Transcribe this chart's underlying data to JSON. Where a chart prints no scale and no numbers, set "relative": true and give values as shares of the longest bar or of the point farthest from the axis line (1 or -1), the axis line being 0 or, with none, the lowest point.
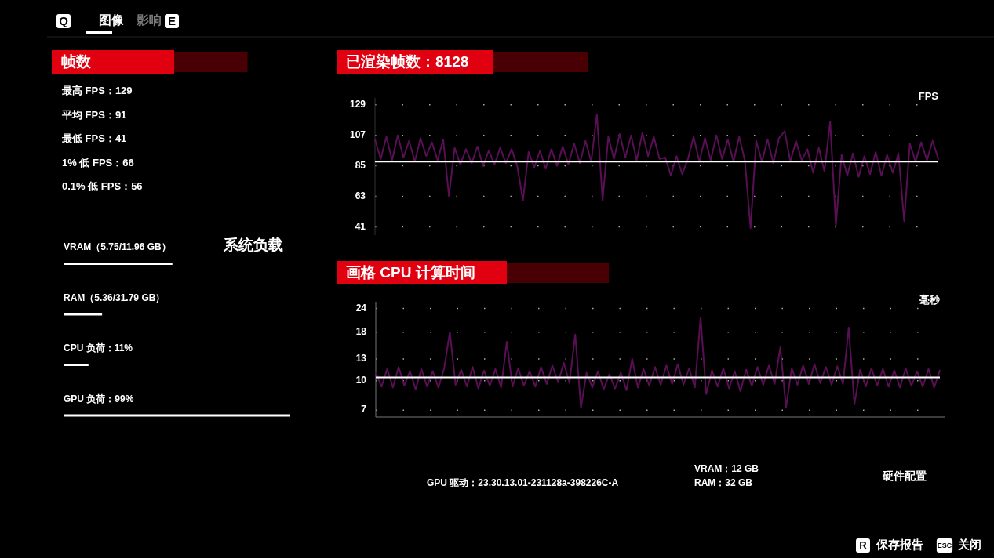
{
  "chart_data": [
    {
      "type": "other",
      "annotations": [
        "Q",
        "图像",
        "影响",
        "E",
        "GPU 驱动：23.30.13.01-231128a-398226C-A",
        "VRAM：12 GB",
        "RAM：32 GB",
        "硬件配置",
        "R",
        "保存报告",
        "ESC",
        "关闭"
      ]
    },
    {
      "type": "other",
      "title": "帧数",
      "annotations": [
        "最高 FPS：129",
        "平均 FPS：91",
        "最低 FPS：41",
        "1% 低 FPS：66",
        "0.1% 低 FPS：56"
      ]
    },
    {
      "type": "bar",
      "orientation": "horizontal",
      "relative": true,
      "title": "系统负载",
      "categories": [
        "VRAM（5.75/11.96 GB）",
        "RAM（5.36/31.79 GB）",
        "CPU 负荷：11%",
        "GPU 负荷：99%"
      ],
      "values": [
        0.48,
        0.17,
        0.11,
        1
      ],
      "color": "#ffffff"
    },
    {
      "type": "line",
      "title": "已渲染帧数：8128",
      "ylabel": "FPS",
      "grid": true,
      "ylim": [
        35,
        134
      ],
      "yticks": [
        129,
        107,
        85,
        63,
        41
      ],
      "ref_lines": [
        {
          "axis": "y",
          "value": 88,
          "color": "#ffffff"
        }
      ],
      "categories": [
        null,
        null,
        null,
        null,
        null,
        null,
        null,
        null,
        null,
        null,
        null,
        null,
        null,
        null,
        null,
        null,
        null,
        null,
        null,
        null,
        null,
        null,
        null,
        null,
        null,
        null,
        null,
        null,
        null,
        null,
        null,
        null,
        null,
        null,
        null,
        null,
        null,
        null,
        null,
        null,
        null,
        null,
        null,
        null,
        null,
        null,
        null,
        null,
        null,
        null,
        null,
        null,
        null,
        null,
        null,
        null,
        null,
        null,
        null,
        null,
        null,
        null,
        null,
        null,
        null,
        null,
        null,
        null,
        null,
        null,
        null,
        null,
        null,
        null,
        null,
        null,
        null,
        null,
        null,
        null,
        null,
        null,
        null,
        null,
        null,
        null,
        null,
        null,
        null,
        null,
        null,
        null,
        null,
        null,
        null,
        null,
        null,
        null,
        null,
        null
      ],
      "series": [
        {
          "color": "#5a0f55",
          "values": [
            104,
            90,
            106,
            89,
            107,
            91,
            103,
            88,
            105,
            92,
            102,
            89,
            104,
            63,
            98,
            86,
            97,
            87,
            99,
            85,
            96,
            86,
            98,
            87,
            97,
            85,
            60,
            95,
            84,
            96,
            83,
            97,
            85,
            99,
            86,
            101,
            87,
            103,
            88,
            122,
            60,
            106,
            90,
            108,
            91,
            107,
            89,
            109,
            92,
            106,
            90,
            91,
            78,
            92,
            79,
            90,
            106,
            88,
            105,
            89,
            107,
            90,
            104,
            88,
            106,
            89,
            40,
            103,
            88,
            104,
            87,
            105,
            110,
            88,
            103,
            89,
            97,
            80,
            98,
            81,
            117,
            42,
            93,
            78,
            94,
            77,
            92,
            79,
            95,
            78,
            93,
            80,
            94,
            45,
            101,
            88,
            102,
            89,
            103,
            90
          ]
        }
      ]
    },
    {
      "type": "line",
      "title": "画格 CPU 计算时间",
      "ylabel": "毫秒",
      "grid": true,
      "log": "y",
      "ylim": [
        6.5,
        26
      ],
      "yticks": [
        24,
        18,
        13,
        10,
        7
      ],
      "ref_lines": [
        {
          "axis": "y",
          "value": 10.4,
          "color": "#ffffff"
        }
      ],
      "categories": [
        null,
        null,
        null,
        null,
        null,
        null,
        null,
        null,
        null,
        null,
        null,
        null,
        null,
        null,
        null,
        null,
        null,
        null,
        null,
        null,
        null,
        null,
        null,
        null,
        null,
        null,
        null,
        null,
        null,
        null,
        null,
        null,
        null,
        null,
        null,
        null,
        null,
        null,
        null,
        null,
        null,
        null,
        null,
        null,
        null,
        null,
        null,
        null,
        null,
        null,
        null,
        null,
        null,
        null,
        null,
        null,
        null,
        null,
        null,
        null,
        null,
        null,
        null,
        null,
        null,
        null,
        null,
        null,
        null,
        null,
        null,
        null,
        null,
        null,
        null,
        null,
        null,
        null,
        null,
        null,
        null,
        null,
        null,
        null,
        null,
        null,
        null,
        null,
        null,
        null,
        null,
        null,
        null,
        null,
        null,
        null,
        null,
        null,
        null,
        null
      ],
      "series": [
        {
          "color": "#5a0f55",
          "values": [
            11,
            9.3,
            11.5,
            9.2,
            11.8,
            9.4,
            11.2,
            9.0,
            11.5,
            9.3,
            11.2,
            9.2,
            11.6,
            18,
            9.5,
            11.4,
            9.3,
            11.8,
            9.1,
            11.3,
            9.4,
            11.5,
            9.2,
            16,
            9.3,
            11.6,
            9.4,
            11.2,
            9.3,
            11.8,
            9.6,
            12,
            9.8,
            12.4,
            9.7,
            17.5,
            7.2,
            11,
            9.2,
            11.2,
            9.0,
            10.8,
            9.1,
            11,
            8.9,
            13,
            9.2,
            11.5,
            9.4,
            11.8,
            9.5,
            12,
            9.6,
            12.2,
            9.5,
            11.6,
            9.2,
            21.5,
            8.5,
            11.3,
            9.3,
            11.6,
            9.1,
            11.2,
            8.8,
            11.4,
            9.4,
            11.8,
            9.5,
            12,
            9.6,
            15,
            7.2,
            11.6,
            9.5,
            12,
            9.6,
            12.2,
            9.7,
            11.8,
            9.5,
            11.9,
            9.6,
            19,
            7.5,
            11.4,
            9.3,
            11.6,
            9.4,
            11.5,
            9.3,
            11.3,
            9.2,
            11.6,
            9.4,
            11.2,
            9.3,
            11.5,
            9.2,
            11.3
          ]
        }
      ]
    }
  ]
}
